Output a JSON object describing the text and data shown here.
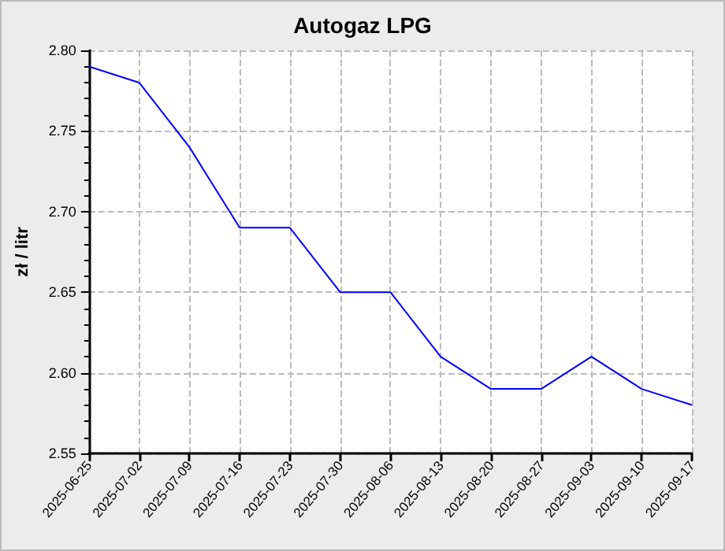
{
  "chart_data": {
    "type": "line",
    "title": "Autogaz LPG",
    "ylabel": "zł / litr",
    "categories": [
      "2025-06-25",
      "2025-07-02",
      "2025-07-09",
      "2025-07-16",
      "2025-07-23",
      "2025-07-30",
      "2025-08-06",
      "2025-08-13",
      "2025-08-20",
      "2025-08-27",
      "2025-09-03",
      "2025-09-10",
      "2025-09-17"
    ],
    "series": [
      {
        "color": "#0000ff",
        "values": [
          2.79,
          2.78,
          2.74,
          2.69,
          2.69,
          2.65,
          2.65,
          2.61,
          2.59,
          2.59,
          2.61,
          2.59,
          2.58
        ]
      }
    ],
    "ylim": [
      2.55,
      2.8
    ],
    "yticks": [
      2.55,
      {
        "value": 2.6,
        "label": "2.60"
      },
      2.65,
      {
        "value": 2.7,
        "label": "2.70"
      },
      2.75,
      {
        "value": 2.8,
        "label": "2.80"
      }
    ],
    "grid": true,
    "marker": "none",
    "line_style": "solid"
  }
}
